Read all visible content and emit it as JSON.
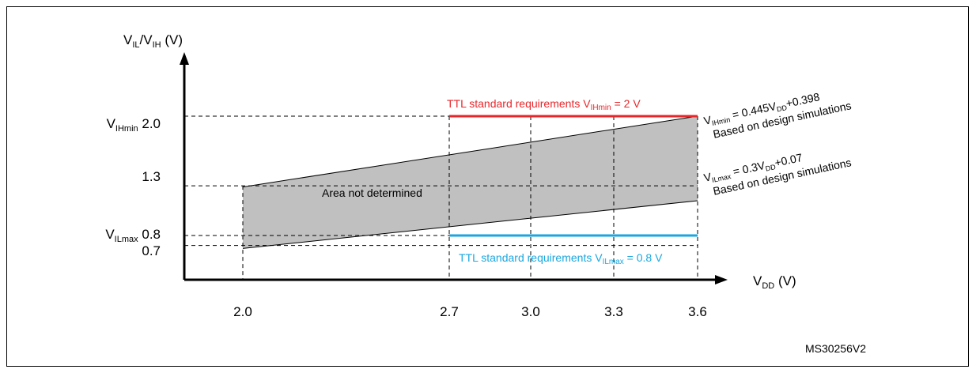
{
  "chart_data": {
    "type": "area",
    "ylabel": {
      "main": "V",
      "sub1": "IL",
      "mid": "/V",
      "sub2": "IH",
      "unit": " (V)"
    },
    "xlabel": {
      "main": "V",
      "sub": "DD",
      "unit": " (V)"
    },
    "x_ticks": [
      "2.0",
      "2.7",
      "3.0",
      "3.3",
      "3.6"
    ],
    "x_values": [
      2.0,
      2.7,
      3.0,
      3.3,
      3.6
    ],
    "y_ticks": [
      {
        "prefix": "V",
        "sub": "IHmin",
        "value_label": " 2.0",
        "value": 2.0
      },
      {
        "prefix": "",
        "sub": "",
        "value_label": "1.3",
        "value": 1.3
      },
      {
        "prefix": "V",
        "sub": "ILmax",
        "value_label": " 0.8",
        "value": 0.8
      },
      {
        "prefix": "",
        "sub": "",
        "value_label": "0.7",
        "value": 0.7
      }
    ],
    "series": [
      {
        "name": "VIHmin = 0.445VDD+0.398",
        "x": [
          2.0,
          3.6
        ],
        "y": [
          1.288,
          2.0
        ]
      },
      {
        "name": "VILmax = 0.3VDD+0.07",
        "x": [
          2.0,
          3.6
        ],
        "y": [
          0.67,
          1.15
        ]
      }
    ],
    "ttl_high": {
      "value": 2.0,
      "x_range": [
        2.7,
        3.6
      ],
      "color": "#e8262a"
    },
    "ttl_low": {
      "value": 0.8,
      "x_range": [
        2.7,
        3.6
      ],
      "color": "#1aa7e0"
    },
    "area_color": "#c0c0c0"
  },
  "labels": {
    "area": "Area not determined",
    "ttl_high": {
      "pre": "TTL standard  requirements V",
      "sub": "IHmin",
      "post": " = 2 V"
    },
    "ttl_low": {
      "pre": "TTL standard  requirements V",
      "sub": "ILmax",
      "post": " = 0.8 V"
    },
    "eq_high": {
      "pre": "V",
      "sub1": "IHmin",
      "mid": " = 0.445V",
      "sub2": "DD",
      "post": "+0.398"
    },
    "eq_low": {
      "pre": "V",
      "sub1": "ILmax",
      "mid": " = 0.3V",
      "sub2": "DD",
      "post": "+0.07"
    },
    "design_note": "Based on design simulations",
    "design_note_2": "Based on design  simulations",
    "figure_id": "MS30256V2"
  }
}
